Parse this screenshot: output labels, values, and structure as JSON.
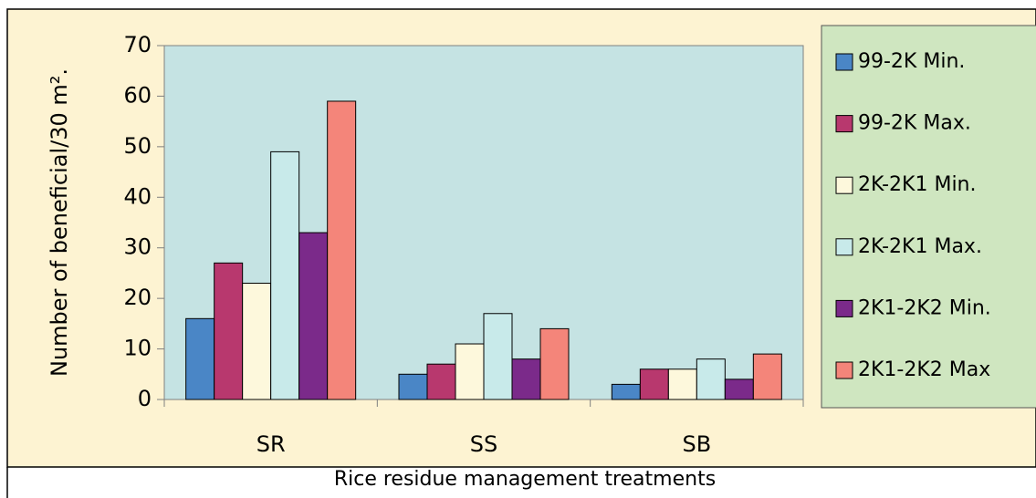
{
  "chart_data": {
    "type": "bar",
    "y_label": "Number of beneficial/30 m².",
    "x_label": "Rice residue management treatments",
    "categories": [
      "SR",
      "SS",
      "SB"
    ],
    "series": [
      {
        "name": "99-2K Min.",
        "color": "#4a86c6",
        "values": [
          16,
          5,
          3
        ]
      },
      {
        "name": "99-2K Max.",
        "color": "#b8386e",
        "values": [
          27,
          7,
          6
        ]
      },
      {
        "name": "2K-2K1 Min.",
        "color": "#fdf8dc",
        "values": [
          23,
          11,
          6
        ]
      },
      {
        "name": "2K-2K1 Max.",
        "color": "#c8eaea",
        "values": [
          49,
          17,
          8
        ]
      },
      {
        "name": "2K1-2K2 Min.",
        "color": "#7b2a8a",
        "values": [
          33,
          8,
          4
        ]
      },
      {
        "name": "2K1-2K2 Max",
        "color": "#f4857a",
        "values": [
          59,
          14,
          9
        ]
      }
    ],
    "ylim": [
      0,
      70
    ],
    "yticks": [
      0,
      10,
      20,
      30,
      40,
      50,
      60,
      70
    ],
    "grid": false
  }
}
